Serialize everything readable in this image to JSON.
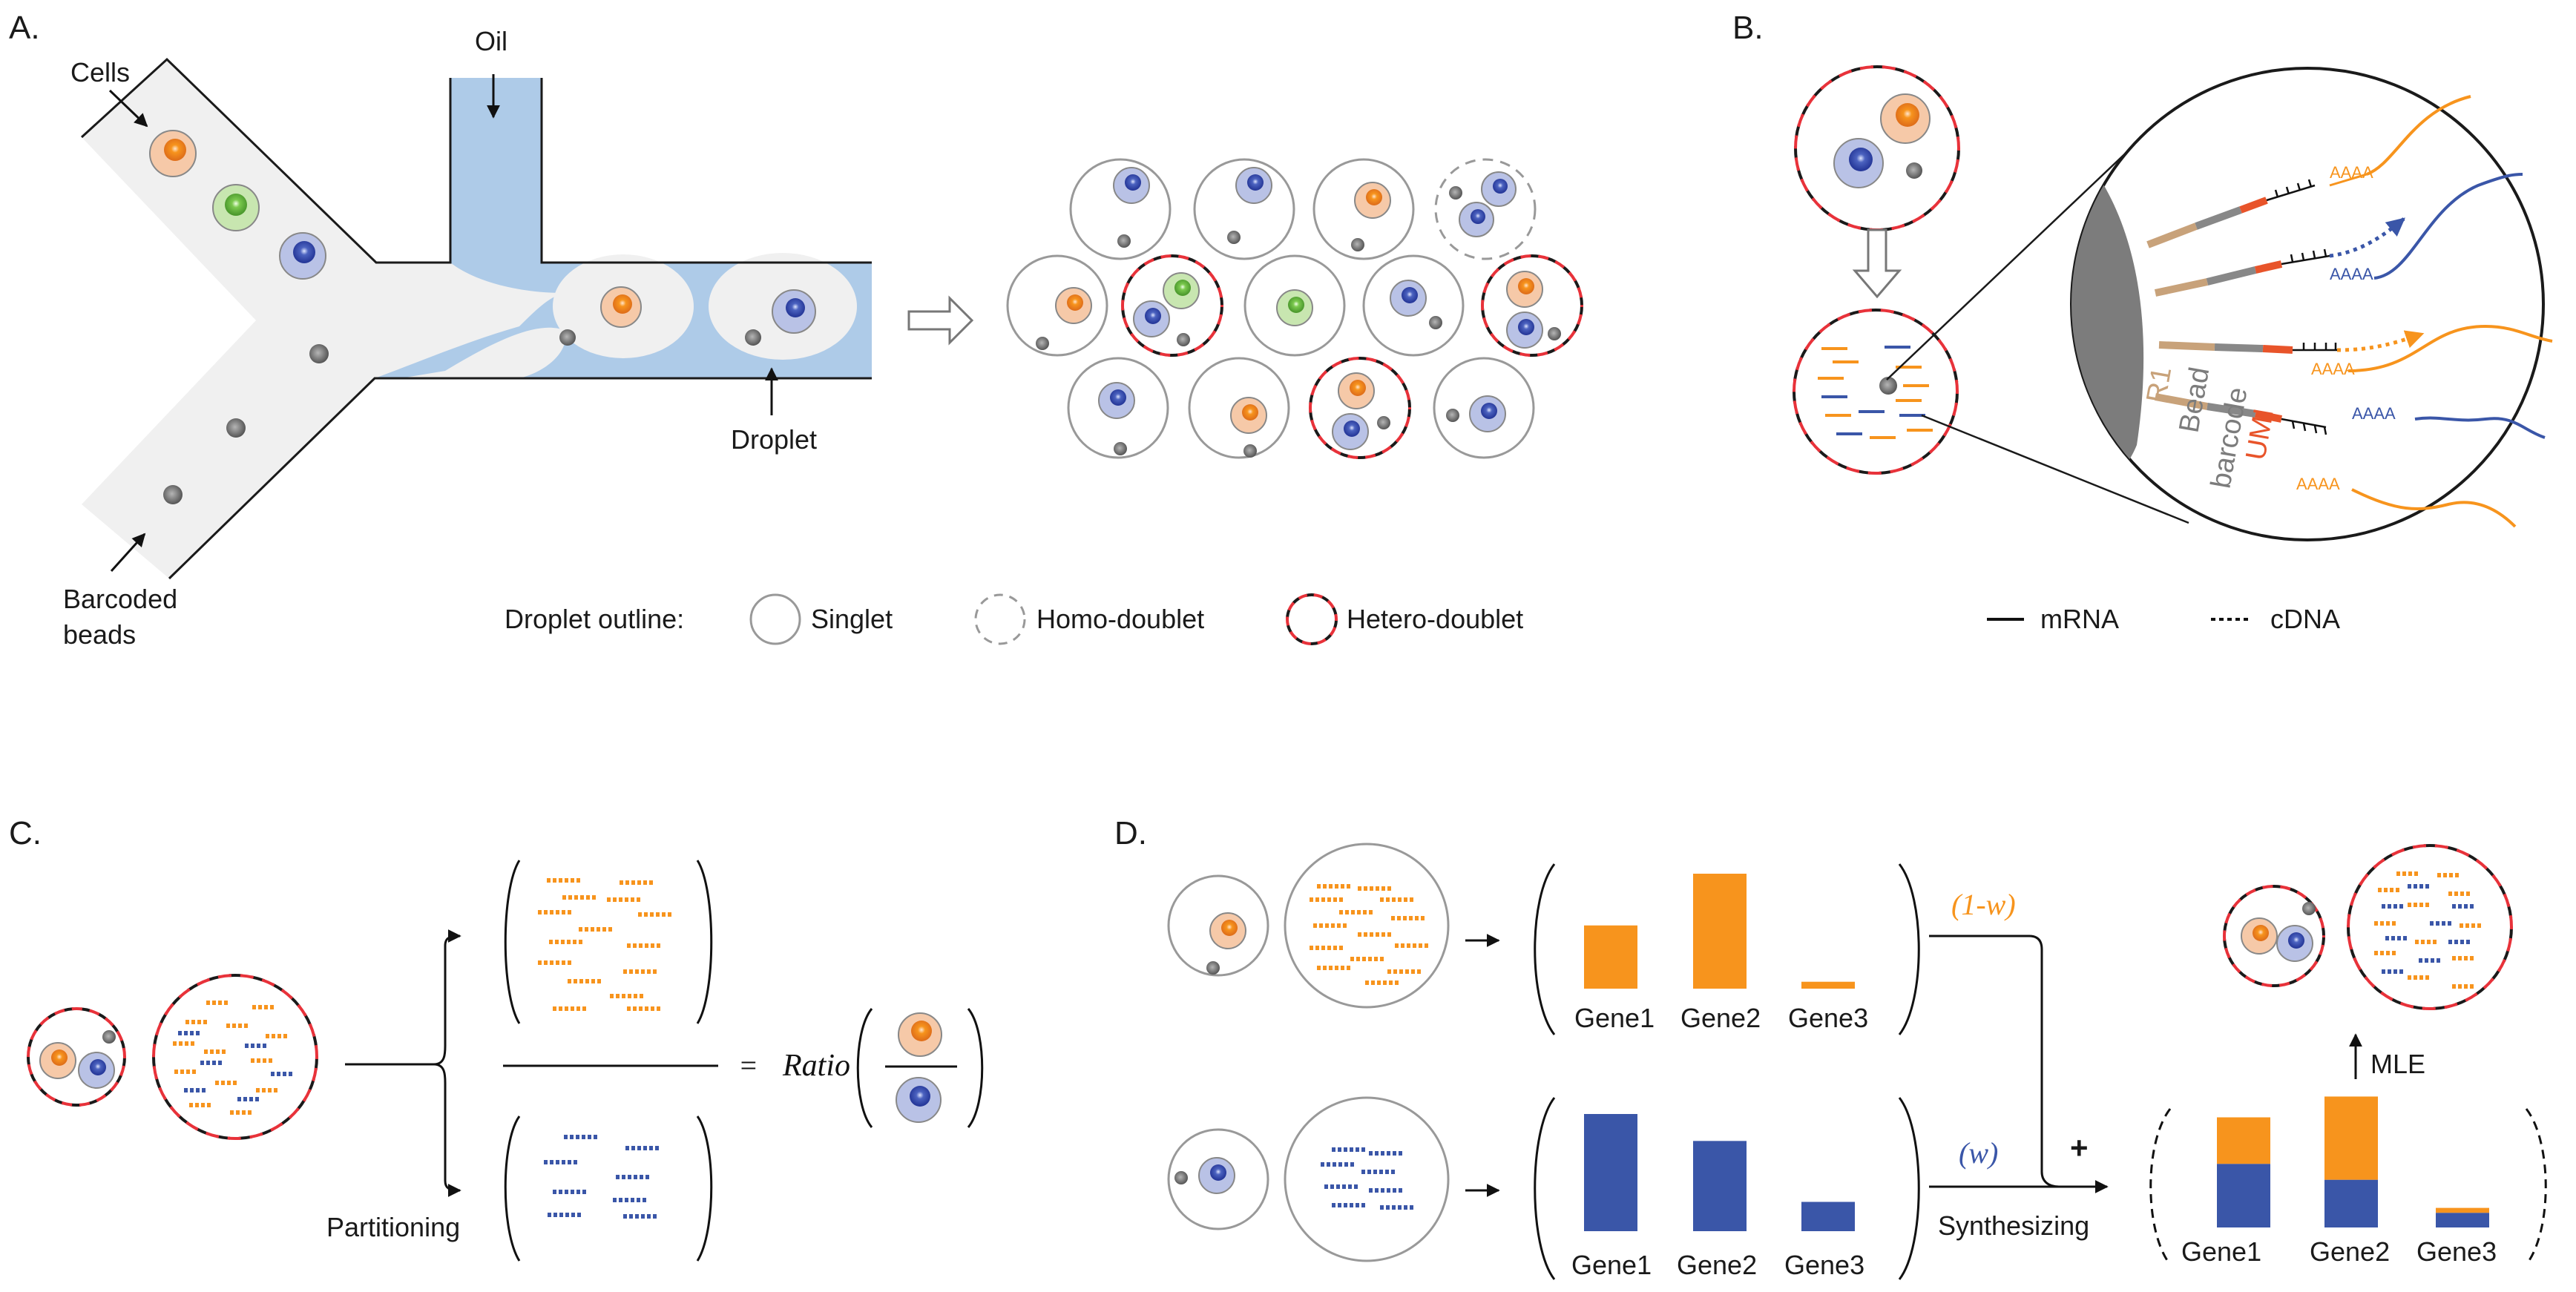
{
  "panels": {
    "a": "A.",
    "b": "B.",
    "c": "C.",
    "d": "D."
  },
  "panel_a": {
    "cells_label": "Cells",
    "oil_label": "Oil",
    "beads_label_line1": "Barcoded",
    "beads_label_line2": "beads",
    "droplet_label": "Droplet"
  },
  "legend_a": {
    "title": "Droplet outline:",
    "singlet": "Singlet",
    "homo": "Homo-doublet",
    "hetero": "Hetero-doublet"
  },
  "panel_b": {
    "r1": "R1",
    "bead_line1": "Bead",
    "bead_line2": "barcode",
    "umi": "UMI",
    "polya": "AAAA",
    "mrna_legend": "mRNA",
    "cdna_legend": "cDNA"
  },
  "panel_c": {
    "partitioning": "Partitioning",
    "equals": "=",
    "ratio": "Ratio"
  },
  "panel_d": {
    "genes": [
      "Gene1",
      "Gene2",
      "Gene3"
    ],
    "one_minus_w": "(1-w)",
    "w": "(w)",
    "plus": "+",
    "synthesizing": "Synthesizing",
    "mle": "MLE",
    "orange_values": [
      0.55,
      1.0,
      0.06
    ],
    "blue_values": [
      1.0,
      0.77,
      0.25
    ],
    "mixed_blue": [
      0.52,
      0.39,
      0.12
    ],
    "mixed_orange": [
      0.38,
      0.68,
      0.04
    ]
  },
  "colors": {
    "orange": "#f7941d",
    "blue": "#3a56a8",
    "green": "#6cc04a",
    "red_dash": "#e8323a",
    "oil": "#aecbe8",
    "channel": "#f0f0f0",
    "bead_gray": "#888888",
    "tan": "#c8a27a",
    "umi_red": "#e8542a"
  }
}
